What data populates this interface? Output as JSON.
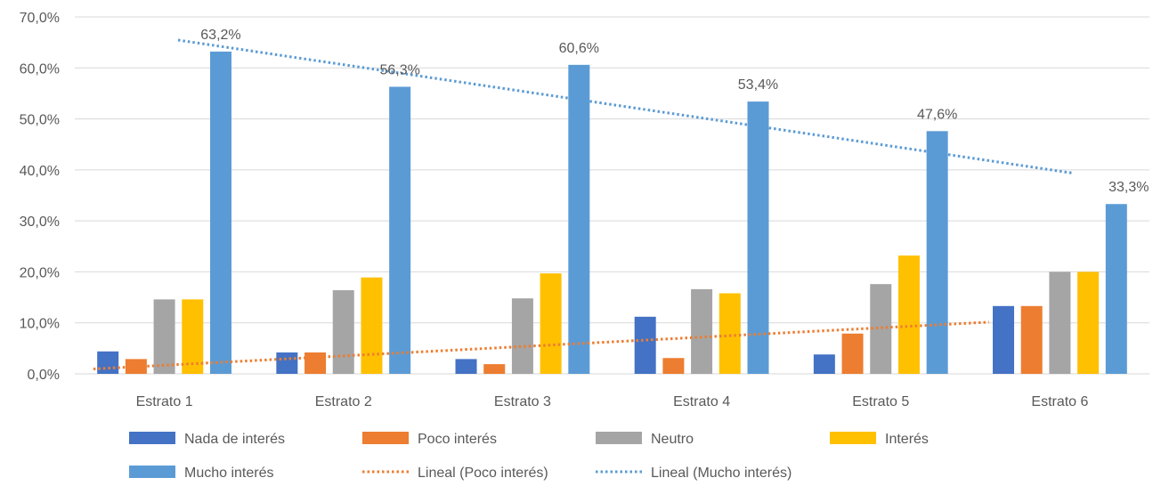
{
  "chart_data": {
    "type": "bar",
    "categories": [
      "Estrato 1",
      "Estrato 2",
      "Estrato 3",
      "Estrato 4",
      "Estrato 5",
      "Estrato 6"
    ],
    "series": [
      {
        "name": "Nada de interés",
        "color": "#4472C4",
        "values": [
          4.4,
          4.2,
          2.9,
          11.2,
          3.8,
          13.3
        ]
      },
      {
        "name": "Poco interés",
        "color": "#ED7D31",
        "values": [
          2.9,
          4.2,
          1.9,
          3.1,
          7.9,
          13.3
        ]
      },
      {
        "name": "Neutro",
        "color": "#A5A5A5",
        "values": [
          14.6,
          16.4,
          14.8,
          16.6,
          17.6,
          20.0
        ]
      },
      {
        "name": "Interés",
        "color": "#FFC000",
        "values": [
          14.6,
          18.9,
          19.7,
          15.8,
          23.2,
          20.0
        ]
      },
      {
        "name": "Mucho interés",
        "color": "#5B9BD5",
        "values": [
          63.2,
          56.3,
          60.6,
          53.4,
          47.6,
          33.3
        ]
      }
    ],
    "data_labels": {
      "series": "Mucho interés",
      "labels": [
        "63,2%",
        "56,3%",
        "60,6%",
        "53,4%",
        "47,6%",
        "33,3%"
      ]
    },
    "trendlines": [
      {
        "name": "Lineal (Poco interés)",
        "series": "Poco interés",
        "type": "linear",
        "style": "dotted",
        "color": "#ED7D31"
      },
      {
        "name": "Lineal (Mucho interés)",
        "series": "Mucho interés",
        "type": "linear",
        "style": "dotted",
        "color": "#5B9BD5"
      }
    ],
    "y_axis": {
      "min": 0,
      "max": 70,
      "step": 10,
      "tick_labels": [
        "0,0%",
        "10,0%",
        "20,0%",
        "30,0%",
        "40,0%",
        "50,0%",
        "60,0%",
        "70,0%"
      ]
    },
    "grid": true,
    "legend_position": "bottom",
    "title": "",
    "xlabel": "",
    "ylabel": ""
  }
}
